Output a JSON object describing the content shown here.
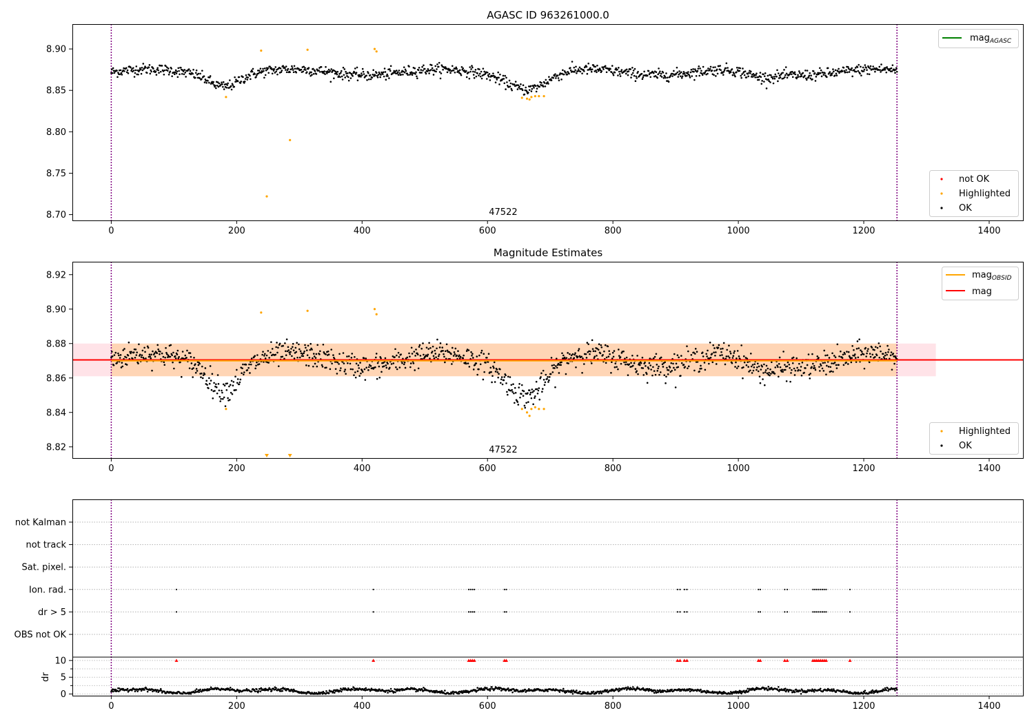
{
  "chart_data": [
    {
      "type": "scatter",
      "title": "AGASC ID 963261000.0",
      "xlim": [
        -62,
        1455
      ],
      "ylim": [
        8.693,
        8.93
      ],
      "x_ticks": [
        0,
        200,
        400,
        600,
        800,
        1000,
        1200,
        1400
      ],
      "y_ticks": [
        8.7,
        8.75,
        8.8,
        8.85,
        8.9
      ],
      "y_tick_labels": [
        "8.70",
        "8.75",
        "8.80",
        "8.85",
        "8.90"
      ],
      "grid": false,
      "obs_boundaries": [
        0,
        1253
      ],
      "obsid_label": "47522",
      "obsid_label_x": 625,
      "line_legend": {
        "position": "top-right",
        "entries": [
          {
            "label": "mag",
            "subscript": "AGASC",
            "color": "#008000"
          }
        ]
      },
      "point_legend": {
        "position": "bottom-right",
        "entries": [
          {
            "label": "not OK",
            "color": "#ff0000"
          },
          {
            "label": "Highlighted",
            "color": "#ffa500"
          },
          {
            "label": "OK",
            "color": "#000000"
          }
        ]
      },
      "ok_series": {
        "name": "OK",
        "x_range": [
          0,
          1253
        ],
        "y_center": 8.872,
        "y_spread": 0.008,
        "color": "#000000",
        "dips": [
          {
            "x": 180,
            "width": 22,
            "depth": 0.014
          },
          {
            "x": 665,
            "width": 30,
            "depth": 0.018
          },
          {
            "x": 1035,
            "width": 25,
            "depth": 0.007
          }
        ]
      },
      "highlighted": {
        "name": "Highlighted",
        "color": "#ffa500",
        "points": [
          [
            183,
            8.842
          ],
          [
            239,
            8.898
          ],
          [
            248,
            8.722
          ],
          [
            285,
            8.79
          ],
          [
            313,
            8.899
          ],
          [
            420,
            8.9
          ],
          [
            423,
            8.897
          ],
          [
            655,
            8.841
          ],
          [
            663,
            8.84
          ],
          [
            667,
            8.839
          ],
          [
            670,
            8.842
          ],
          [
            676,
            8.843
          ],
          [
            682,
            8.843
          ],
          [
            690,
            8.843
          ]
        ]
      }
    },
    {
      "type": "scatter",
      "title": "Magnitude Estimates",
      "xlim": [
        -62,
        1455
      ],
      "ylim": [
        8.8135,
        8.9275
      ],
      "x_ticks": [
        0,
        200,
        400,
        600,
        800,
        1000,
        1200,
        1400
      ],
      "y_ticks": [
        8.82,
        8.84,
        8.86,
        8.88,
        8.9,
        8.92
      ],
      "y_tick_labels": [
        "8.82",
        "8.84",
        "8.86",
        "8.88",
        "8.90",
        "8.92"
      ],
      "grid": false,
      "obs_boundaries": [
        0,
        1253
      ],
      "obsid_label": "47522",
      "obsid_label_x": 625,
      "mag_agasc_level": 8.8705,
      "mag_band": {
        "x": [
          -62,
          1315
        ],
        "y": [
          8.861,
          8.88
        ],
        "color": "#ffc0cb"
      },
      "mag_obsid": {
        "x": [
          0,
          1253
        ],
        "y": 8.87,
        "band": [
          8.861,
          8.88
        ],
        "color": "#ffa500"
      },
      "line_legend": {
        "position": "top-right",
        "entries": [
          {
            "label": "mag",
            "subscript": "OBSID",
            "color": "#ffa500"
          },
          {
            "label": "mag",
            "subscript": "",
            "color": "#ff0000"
          }
        ]
      },
      "point_legend": {
        "position": "bottom-right",
        "entries": [
          {
            "label": "Highlighted",
            "color": "#ffa500"
          },
          {
            "label": "OK",
            "color": "#000000"
          }
        ]
      },
      "ok_series": {
        "name": "OK",
        "x_range": [
          0,
          1253
        ],
        "y_center": 8.8705,
        "y_spread": 0.0085,
        "color": "#000000",
        "dips": [
          {
            "x": 180,
            "width": 22,
            "depth": 0.014
          },
          {
            "x": 665,
            "width": 30,
            "depth": 0.018
          },
          {
            "x": 1035,
            "width": 25,
            "depth": 0.007
          }
        ]
      },
      "highlighted": {
        "name": "Highlighted",
        "color": "#ffa500",
        "points": [
          [
            183,
            8.842
          ],
          [
            239,
            8.898
          ],
          [
            313,
            8.899
          ],
          [
            420,
            8.9
          ],
          [
            423,
            8.897
          ],
          [
            655,
            8.842
          ],
          [
            663,
            8.84
          ],
          [
            667,
            8.838
          ],
          [
            670,
            8.842
          ],
          [
            676,
            8.843
          ],
          [
            682,
            8.842
          ],
          [
            690,
            8.842
          ]
        ]
      },
      "off_scale_markers": {
        "color": "#ffa500",
        "x": [
          248,
          285
        ]
      }
    },
    {
      "type": "scatter",
      "title": "",
      "xlim": [
        -62,
        1455
      ],
      "x_ticks": [
        0,
        200,
        400,
        600,
        800,
        1000,
        1200,
        1400
      ],
      "obs_boundaries": [
        0,
        1253
      ],
      "flag_rows": [
        "not Kalman",
        "not track",
        "Sat. pixel.",
        "Ion. rad.",
        "dr > 5",
        "OBS not OK"
      ],
      "flag_points": {
        "Ion. rad.": [
          104,
          418,
          570,
          573,
          576,
          579,
          627,
          630,
          903,
          907,
          914,
          918,
          1032,
          1035,
          1074,
          1078,
          1119,
          1122,
          1125,
          1128,
          1131,
          1134,
          1137,
          1140,
          1178
        ],
        "dr > 5": [
          104,
          418,
          570,
          573,
          576,
          579,
          627,
          630,
          903,
          907,
          914,
          918,
          1032,
          1035,
          1074,
          1078,
          1119,
          1122,
          1125,
          1128,
          1131,
          1134,
          1137,
          1140,
          1178
        ]
      },
      "dr": {
        "ylabel": "dr",
        "ylim": [
          -0.5,
          11
        ],
        "y_ticks": [
          0,
          5,
          10
        ],
        "y_tick_labels": [
          "0",
          "5",
          "10"
        ],
        "clip_value": 10,
        "clip_color": "#ff0000",
        "color": "#000000",
        "level": 1.0,
        "amplitude": 0.8
      }
    }
  ]
}
